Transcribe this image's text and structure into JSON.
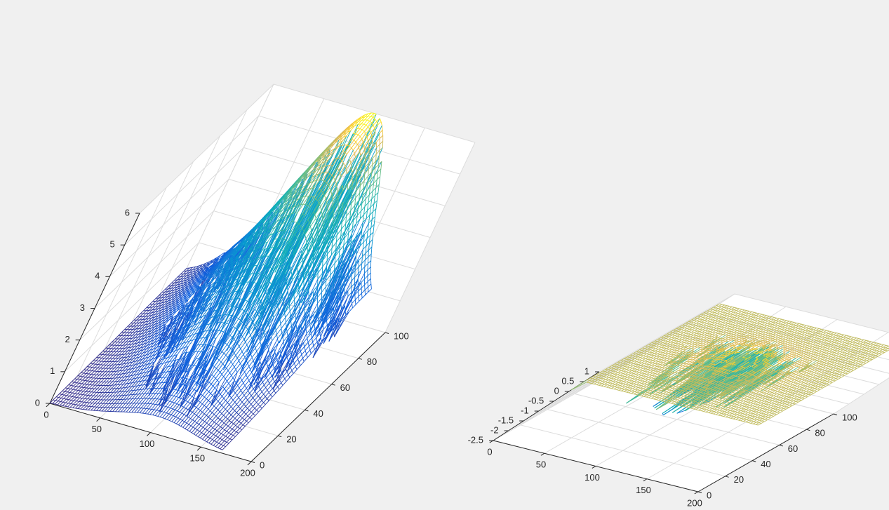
{
  "window": {
    "background": "#f0f0f0",
    "axes_background": "#ffffff",
    "axis_color": "#262626",
    "grid_color": "#dcdcdc"
  },
  "chart_data": [
    {
      "type": "mesh",
      "title": "",
      "xlabel": "",
      "ylabel": "",
      "zlabel": "",
      "xlim": [
        0,
        200
      ],
      "ylim": [
        0,
        100
      ],
      "zlim": [
        0,
        6
      ],
      "x_ticks": [
        "0",
        "50",
        "100",
        "150",
        "200"
      ],
      "y_ticks": [
        "0",
        "20",
        "40",
        "60",
        "80",
        "100"
      ],
      "z_ticks": [
        "0",
        "1",
        "2",
        "3",
        "4",
        "5",
        "6"
      ],
      "grid": true,
      "colormap": "parula",
      "surface": {
        "x_range": [
          0,
          170
        ],
        "y_range": [
          0,
          100
        ],
        "shape": "gaussian",
        "peak_x": 100,
        "peak_y": 100,
        "peak_z": 6,
        "sigma_x": 38,
        "sigma_y": 45,
        "noise": "sparse dropouts toward 0"
      }
    },
    {
      "type": "mesh",
      "title": "",
      "xlabel": "",
      "ylabel": "",
      "zlabel": "",
      "xlim": [
        0,
        200
      ],
      "ylim": [
        0,
        100
      ],
      "zlim": [
        -2.5,
        1
      ],
      "x_ticks": [
        "0",
        "50",
        "100",
        "150",
        "200"
      ],
      "y_ticks": [
        "0",
        "20",
        "40",
        "60",
        "80",
        "100"
      ],
      "z_ticks": [
        "-2.5",
        "-2",
        "-1.5",
        "-1",
        "-0.5",
        "0",
        "0.5",
        "1"
      ],
      "grid": true,
      "colormap": "parula",
      "surface": {
        "x_range": [
          0,
          170
        ],
        "y_range": [
          0,
          100
        ],
        "shape": "plateau with central bump and deep downward spikes",
        "base_z": 0.5,
        "bump_z": 0.9,
        "min_z": -2.05,
        "peak_x": 85,
        "peak_y": 50
      }
    }
  ]
}
